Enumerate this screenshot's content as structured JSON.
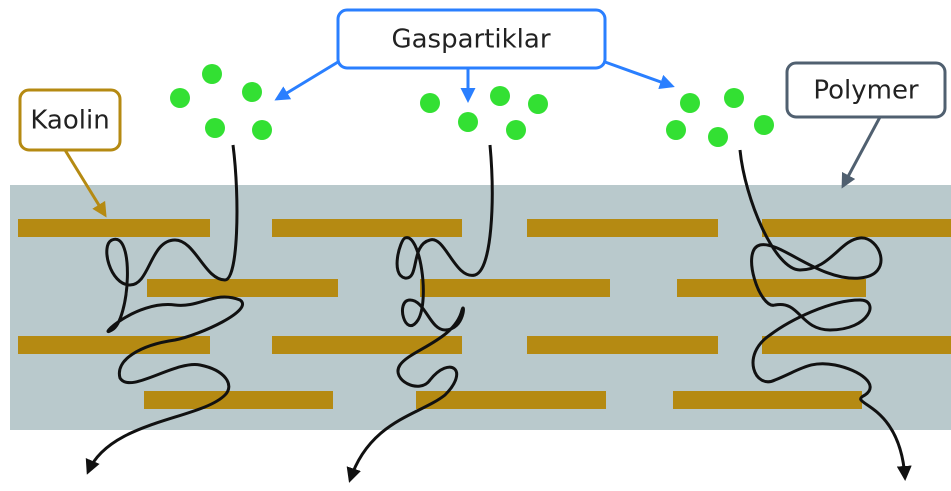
{
  "labels": {
    "gas": "Gaspartiklar",
    "kaolin": "Kaolin",
    "polymer": "Polymer"
  }
}
